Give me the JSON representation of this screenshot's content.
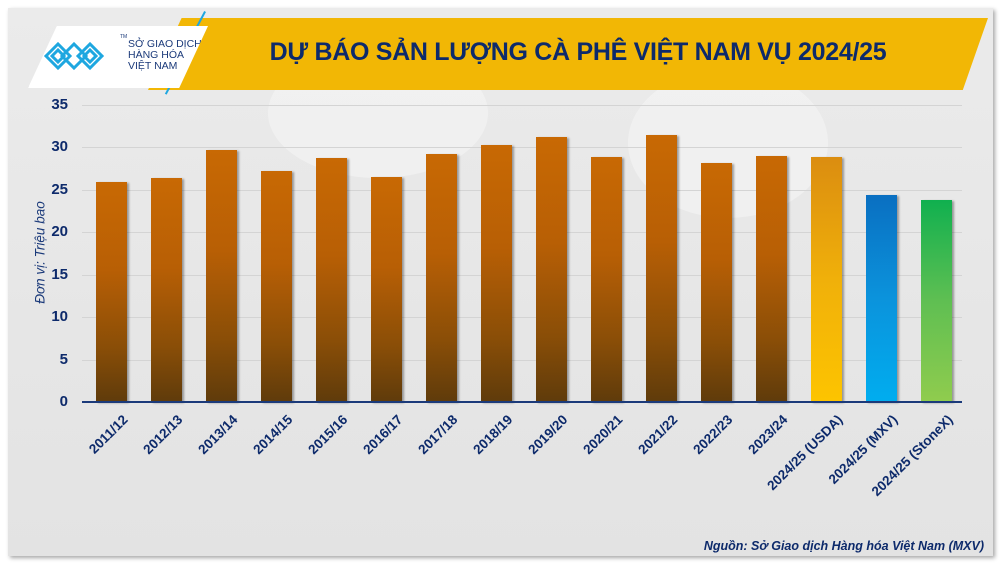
{
  "header": {
    "title": "DỰ BÁO SẢN LƯỢNG CÀ PHÊ VIỆT NAM VỤ 2024/25",
    "logo": {
      "tm": "TM",
      "line1": "SỞ GIAO DỊCH",
      "line2": "HÀNG HÓA",
      "line3": "VIỆT NAM"
    }
  },
  "colors": {
    "banner": "#f2b705",
    "title_text": "#0d2a6b",
    "historical_bar": "#c86904",
    "usda_bar": "#fdc400",
    "mxv_bar": "#00adef",
    "stonex_bar": "#90cc4e",
    "axis": "#1b3a7a"
  },
  "chart_data": {
    "type": "bar",
    "title": "DỰ BÁO SẢN LƯỢNG CÀ PHÊ VIỆT NAM VỤ 2024/25",
    "xlabel": "",
    "ylabel": "Đơn vị: Triệu bao",
    "ylim": [
      0,
      35
    ],
    "yticks": [
      0,
      5,
      10,
      15,
      20,
      25,
      30,
      35
    ],
    "grid": true,
    "legend": null,
    "categories": [
      "2011/12",
      "2012/13",
      "2013/14",
      "2014/15",
      "2015/16",
      "2016/17",
      "2017/18",
      "2018/19",
      "2019/20",
      "2020/21",
      "2021/22",
      "2022/23",
      "2023/24",
      "2024/25 (USDA)",
      "2024/25 (MXV)",
      "2024/25 (StoneX)"
    ],
    "values": [
      25.9,
      26.4,
      29.7,
      27.2,
      28.7,
      26.5,
      29.2,
      30.3,
      31.2,
      28.9,
      31.5,
      28.2,
      29.0,
      28.9,
      24.4,
      23.8
    ],
    "bar_styles": [
      "hist",
      "hist",
      "hist",
      "hist",
      "hist",
      "hist",
      "hist",
      "hist",
      "hist",
      "hist",
      "hist",
      "hist",
      "hist",
      "usda",
      "mxv",
      "stonex"
    ]
  },
  "footer": {
    "source": "Nguồn: Sở Giao dịch Hàng hóa Việt Nam (MXV)"
  }
}
